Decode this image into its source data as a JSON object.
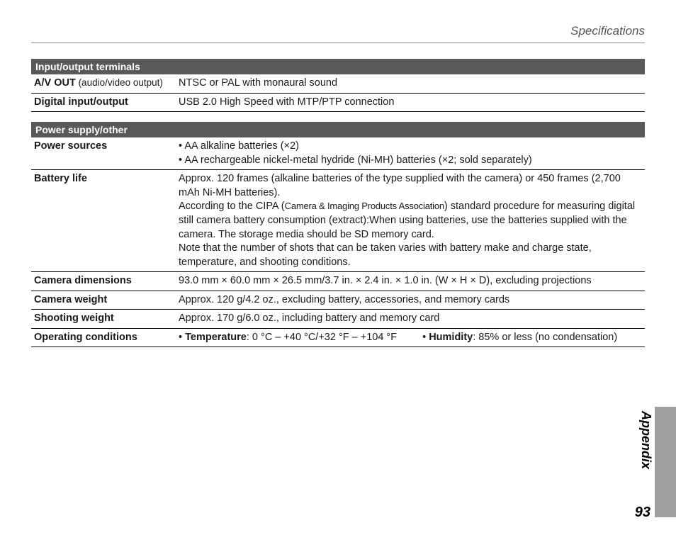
{
  "header": {
    "title": "Specifications"
  },
  "sections": {
    "io": {
      "title": "Input/output terminals",
      "avout_label": "A/V OUT",
      "avout_sub": " (audio/video output)",
      "avout_value": "NTSC or PAL with monaural sound",
      "digital_label": "Digital input/output",
      "digital_value": "USB 2.0 High Speed with MTP/PTP connection"
    },
    "power": {
      "title": "Power supply/other",
      "sources_label": "Power sources",
      "sources_v1": "AA alkaline batteries (×2)",
      "sources_v2": "AA rechargeable nickel-metal hydride (Ni-MH) batteries (×2; sold separately)",
      "batt_label": "Battery life",
      "batt_p1": "Approx. 120 frames (alkaline batteries of the type supplied with the camera) or 450 frames (2,700 mAh Ni-MH batteries).",
      "batt_p2a": "According to the CIPA (",
      "batt_p2b": "Camera & Imaging Products Association",
      "batt_p2c": ") standard procedure for measuring digital still camera battery consumption (extract):When using batteries, use the batteries supplied with the camera.  The storage media should be SD memory card.",
      "batt_p3": "Note that the number of shots that can be taken varies with battery make and charge state, temperature, and shooting conditions.",
      "dim_label": "Camera dimensions",
      "dim_value": "93.0 mm × 60.0 mm × 26.5 mm/3.7 in. × 2.4 in. × 1.0 in. (W × H × D), excluding projections",
      "weight_label": "Camera weight",
      "weight_value": "Approx. 120 g/4.2 oz., excluding battery, accessories, and memory cards",
      "shoot_label": "Shooting weight",
      "shoot_value": "Approx. 170 g/6.0 oz., including battery and memory card",
      "op_label": "Operating conditions",
      "op_temp_k": "Temperature",
      "op_temp_v": ": 0 °C – +40 °C/+32 °F – +104 °F",
      "op_hum_k": "Humidity",
      "op_hum_v": ": 85% or less (no condensation)"
    }
  },
  "side": {
    "tab": "Appendix"
  },
  "footer": {
    "page": "93"
  },
  "colors": {
    "section_bg": "#595959",
    "sidebar_bg": "#a0a0a0",
    "text": "#1a1a1a",
    "header_text": "#555555"
  }
}
